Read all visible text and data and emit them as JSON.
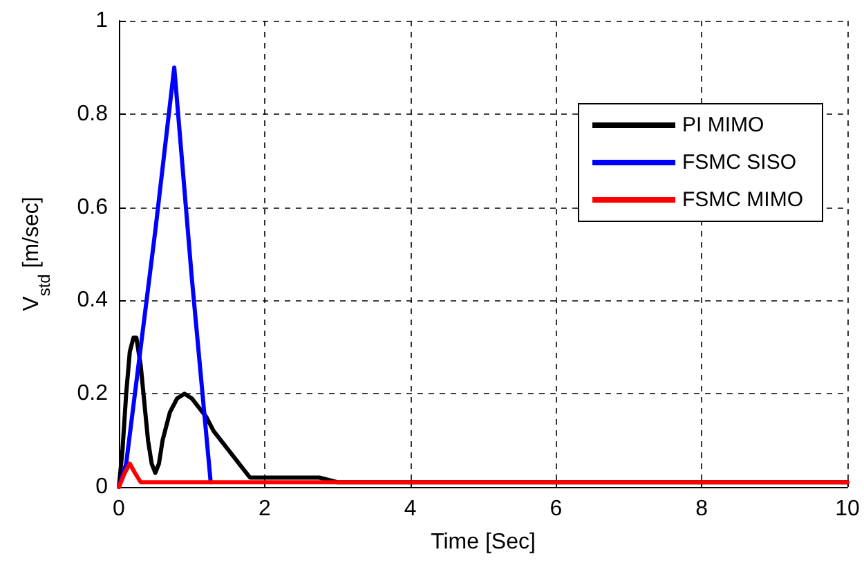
{
  "chart_data": {
    "type": "line",
    "xlabel": "Time [Sec]",
    "ylabel": "V$_{std}$ [m/sec]",
    "xlim": [
      0,
      10
    ],
    "xticks": [
      0,
      2,
      4,
      6,
      8,
      10
    ],
    "ylim": [
      0,
      1
    ],
    "yticks": [
      0,
      0.2,
      0.4,
      0.6,
      0.8,
      1
    ],
    "grid": true,
    "legend": "top right",
    "line_style": "solid",
    "marker": "none",
    "series": [
      {
        "name": "PI MIMO",
        "color": "#000000",
        "x": [
          0,
          0.05,
          0.1,
          0.15,
          0.2,
          0.24,
          0.3,
          0.35,
          0.4,
          0.45,
          0.5,
          0.55,
          0.6,
          0.7,
          0.8,
          0.9,
          1.0,
          1.1,
          1.2,
          1.3,
          1.4,
          1.5,
          1.6,
          1.7,
          1.8,
          1.9,
          2.0,
          2.3,
          2.5,
          2.75,
          3,
          10
        ],
        "values": [
          0,
          0.08,
          0.2,
          0.29,
          0.32,
          0.32,
          0.26,
          0.18,
          0.1,
          0.05,
          0.03,
          0.05,
          0.1,
          0.16,
          0.19,
          0.2,
          0.19,
          0.17,
          0.15,
          0.12,
          0.1,
          0.08,
          0.06,
          0.04,
          0.02,
          0.02,
          0.02,
          0.02,
          0.02,
          0.02,
          0.01,
          0.01
        ]
      },
      {
        "name": "FSMC SISO",
        "color": "#0000ff",
        "x": [
          0,
          0.1,
          0.3,
          0.5,
          0.76,
          1.0,
          1.26
        ],
        "values": [
          0,
          0.05,
          0.3,
          0.55,
          0.9,
          0.45,
          0.01
        ]
      },
      {
        "name": "FSMC MIMO",
        "color": "#ff0000",
        "x": [
          0,
          0.08,
          0.15,
          0.22,
          0.3,
          10
        ],
        "values": [
          0,
          0.03,
          0.05,
          0.03,
          0.01,
          0.01
        ]
      }
    ]
  }
}
